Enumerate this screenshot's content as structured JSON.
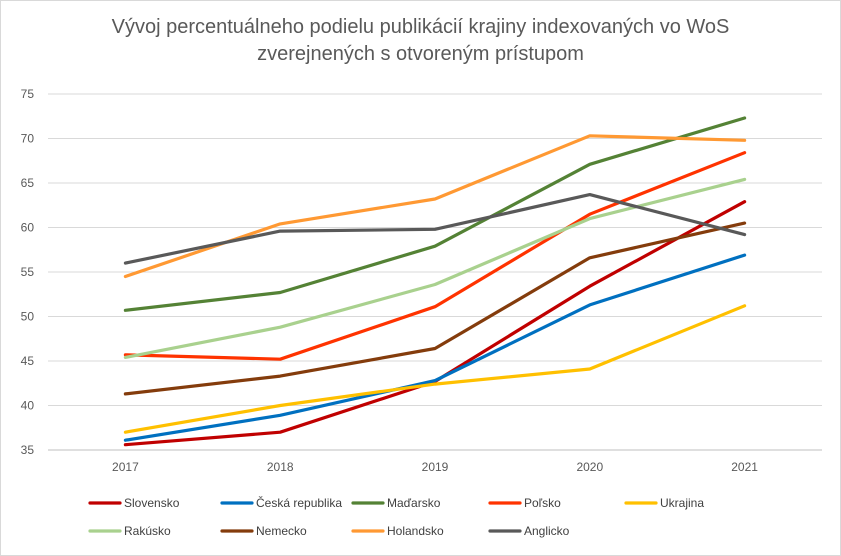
{
  "chart_data": {
    "type": "line",
    "title_line1": "Vývoj percentuálneho podielu publikácií krajiny indexovaných vo WoS",
    "title_line2": "zverejnených s otvoreným prístupom",
    "xlabel": "",
    "ylabel": "",
    "categories": [
      "2017",
      "2018",
      "2019",
      "2020",
      "2021"
    ],
    "ylim": [
      35,
      75
    ],
    "yticks": [
      35,
      40,
      45,
      50,
      55,
      60,
      65,
      70,
      75
    ],
    "grid": true,
    "legend_position": "bottom",
    "series": [
      {
        "name": "Slovensko",
        "color": "#c00000",
        "values": [
          35.6,
          37.0,
          42.7,
          53.4,
          62.9
        ]
      },
      {
        "name": "Česká republika",
        "color": "#0070c0",
        "values": [
          36.1,
          38.9,
          42.8,
          51.3,
          56.9
        ]
      },
      {
        "name": "Maďarsko",
        "color": "#548235",
        "values": [
          50.7,
          52.7,
          57.9,
          67.1,
          72.3
        ]
      },
      {
        "name": "Poľsko",
        "color": "#ff3300",
        "values": [
          45.7,
          45.2,
          51.1,
          61.5,
          68.4
        ]
      },
      {
        "name": "Ukrajina",
        "color": "#ffc000",
        "values": [
          37.0,
          40.0,
          42.4,
          44.1,
          51.2
        ]
      },
      {
        "name": "Rakúsko",
        "color": "#a9d18e",
        "values": [
          45.4,
          48.8,
          53.6,
          61.0,
          65.4
        ]
      },
      {
        "name": "Nemecko",
        "color": "#843c0c",
        "values": [
          41.3,
          43.3,
          46.4,
          56.6,
          60.5
        ]
      },
      {
        "name": "Holandsko",
        "color": "#ff9933",
        "values": [
          54.5,
          60.4,
          63.2,
          70.3,
          69.8
        ]
      },
      {
        "name": "Anglicko",
        "color": "#595959",
        "values": [
          56.0,
          59.6,
          59.8,
          63.7,
          59.2
        ]
      }
    ]
  }
}
